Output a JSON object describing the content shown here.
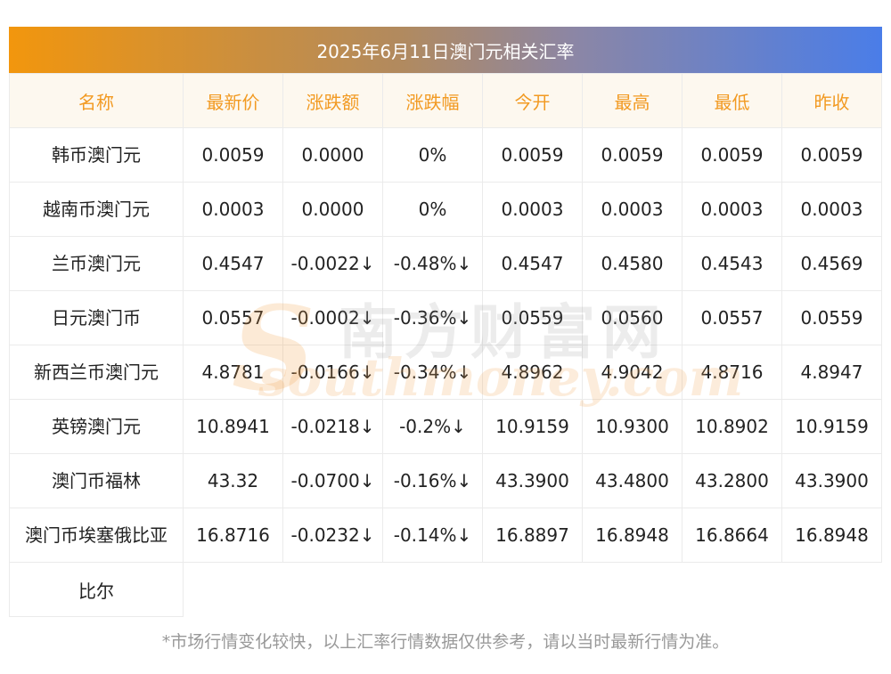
{
  "title": "2025年6月11日澳门元相关汇率",
  "columns": [
    "名称",
    "最新价",
    "涨跌额",
    "涨跌幅",
    "今开",
    "最高",
    "最低",
    "昨收"
  ],
  "rows": [
    {
      "name": "韩币澳门元",
      "latest": "0.0059",
      "change": "0.0000",
      "pct": "0%",
      "open": "0.0059",
      "high": "0.0059",
      "low": "0.0059",
      "prev": "0.0059",
      "trend": "flat"
    },
    {
      "name": "越南币澳门元",
      "latest": "0.0003",
      "change": "0.0000",
      "pct": "0%",
      "open": "0.0003",
      "high": "0.0003",
      "low": "0.0003",
      "prev": "0.0003",
      "trend": "flat"
    },
    {
      "name": "兰币澳门元",
      "latest": "0.4547",
      "change": "-0.0022↓",
      "pct": "-0.48%↓",
      "open": "0.4547",
      "high": "0.4580",
      "low": "0.4543",
      "prev": "0.4569",
      "trend": "down"
    },
    {
      "name": "日元澳门币",
      "latest": "0.0557",
      "change": "-0.0002↓",
      "pct": "-0.36%↓",
      "open": "0.0559",
      "high": "0.0560",
      "low": "0.0557",
      "prev": "0.0559",
      "trend": "down"
    },
    {
      "name": "新西兰币澳门元",
      "latest": "4.8781",
      "change": "-0.0166↓",
      "pct": "-0.34%↓",
      "open": "4.8962",
      "high": "4.9042",
      "low": "4.8716",
      "prev": "4.8947",
      "trend": "down"
    },
    {
      "name": "英镑澳门元",
      "latest": "10.8941",
      "change": "-0.0218↓",
      "pct": "-0.2%↓",
      "open": "10.9159",
      "high": "10.9300",
      "low": "10.8902",
      "prev": "10.9159",
      "trend": "down"
    },
    {
      "name": "澳门币福林",
      "latest": "43.32",
      "change": "-0.0700↓",
      "pct": "-0.16%↓",
      "open": "43.3900",
      "high": "43.4800",
      "low": "43.2800",
      "prev": "43.3900",
      "trend": "down"
    },
    {
      "name": "澳门币埃塞俄比亚",
      "latest": "16.8716",
      "change": "-0.0232↓",
      "pct": "-0.14%↓",
      "open": "16.8897",
      "high": "16.8948",
      "low": "16.8664",
      "prev": "16.8948",
      "trend": "down"
    }
  ],
  "last_row_name_continuation": "比尔",
  "watermark": {
    "cn": "南方财富网",
    "en": "southmoney.com"
  },
  "footnote": "*市场行情变化较快，以上汇率行情数据仅供参考，请以当时最新行情为准。",
  "colors": {
    "header_text": "#f29a22",
    "header_bg": "#fdf8ef",
    "change_color": "#1e8a1e",
    "title_gradient_start": "#f2960d",
    "title_gradient_end": "#4a7de8"
  }
}
